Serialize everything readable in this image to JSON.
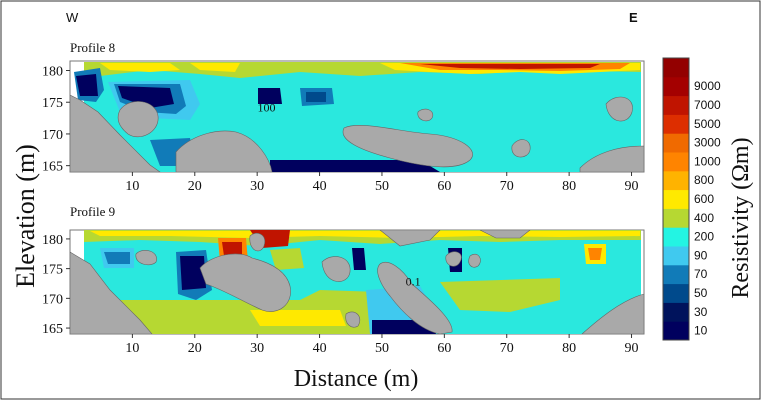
{
  "chart_data": [
    {
      "type": "heatmap",
      "title": "Profile 8",
      "orientation_left": "W",
      "orientation_right": "E",
      "x_ticks": [
        10,
        20,
        30,
        40,
        50,
        60,
        70,
        80,
        90
      ],
      "y_ticks": [
        180,
        175,
        170,
        165
      ],
      "xlim": [
        0,
        92
      ],
      "ylim": [
        164,
        181.5
      ],
      "annotations": [
        {
          "text": "100",
          "x": 31.5,
          "y": 173.5
        }
      ]
    },
    {
      "type": "heatmap",
      "title": "Profile 9",
      "x_ticks": [
        10,
        20,
        30,
        40,
        50,
        60,
        70,
        80,
        90
      ],
      "y_ticks": [
        180,
        175,
        170,
        165
      ],
      "xlim": [
        0,
        92
      ],
      "ylim": [
        164,
        181.5
      ],
      "annotations": [
        {
          "text": "0.1",
          "x": 55,
          "y": 172.2
        }
      ]
    }
  ],
  "axes": {
    "ylabel": "Elevation (m)",
    "xlabel": "Distance (m)"
  },
  "colorbar": {
    "label": "Resistivity (Ωm)",
    "levels": [
      "10",
      "30",
      "50",
      "70",
      "90",
      "200",
      "400",
      "600",
      "800",
      "1000",
      "3000",
      "5000",
      "7000",
      "9000"
    ],
    "colors": [
      "#00005e",
      "#00135c",
      "#004a8c",
      "#117bb8",
      "#40c9ef",
      "#23f4e3",
      "#b6d832",
      "#ffe900",
      "#ffb300",
      "#ff8400",
      "#f06a00",
      "#dd2e00",
      "#c01400",
      "#a40000",
      "#930000"
    ]
  }
}
